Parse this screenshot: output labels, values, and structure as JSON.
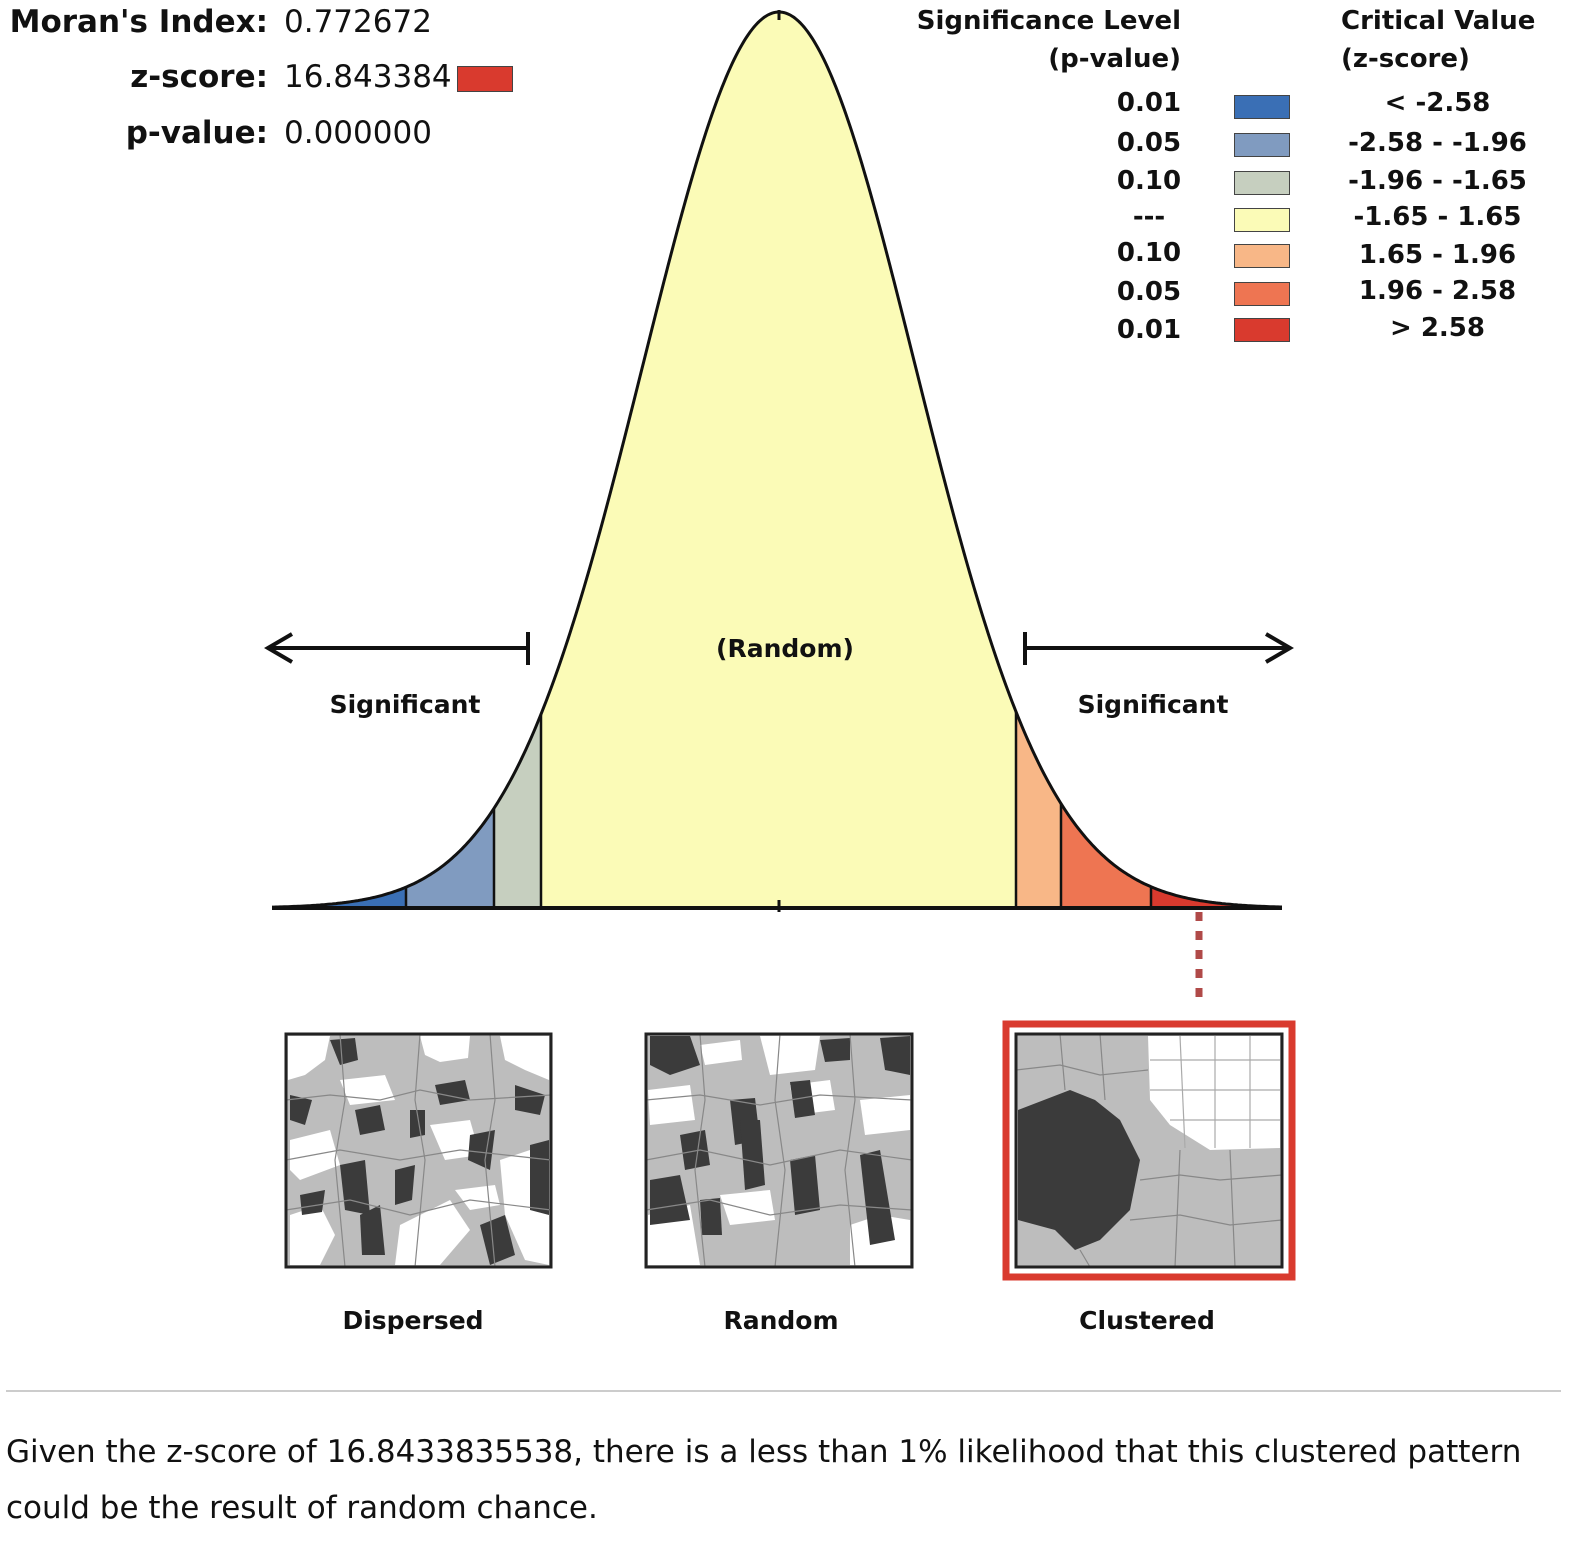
{
  "stats": {
    "morans_label": "Moran's Index:",
    "morans_value": "0.772672",
    "z_label": "z-score:",
    "z_value": "16.843384",
    "p_label": "p-value:",
    "p_value": "0.000000"
  },
  "legend": {
    "sig_header_line1": "Significance Level",
    "sig_header_line2": "(p-value)",
    "crit_header_line1": "Critical Value",
    "crit_header_line2": "(z-score)",
    "rows": [
      {
        "p": "0.01",
        "z": "< -2.58",
        "color": "#3a6fb5"
      },
      {
        "p": "0.05",
        "z": "-2.58 - -1.96",
        "color": "#809bc0"
      },
      {
        "p": "0.10",
        "z": "-1.96 - -1.65",
        "color": "#c6cfbf"
      },
      {
        "p": "---",
        "z": "-1.65 - 1.65",
        "color": "#fbfbb7"
      },
      {
        "p": "0.10",
        "z": "1.65 - 1.96",
        "color": "#f8b787"
      },
      {
        "p": "0.05",
        "z": "1.96 - 2.58",
        "color": "#ee7552"
      },
      {
        "p": "0.01",
        "z": "> 2.58",
        "color": "#d93a2e"
      }
    ]
  },
  "curve": {
    "center_label": "(Random)",
    "left_label": "Significant",
    "right_label": "Significant",
    "line_color": "#111111",
    "highlight_color": "#d93a2e",
    "dotted_color": "#b04a48"
  },
  "patterns": [
    {
      "label": "Dispersed",
      "selected": false
    },
    {
      "label": "Random",
      "selected": false
    },
    {
      "label": "Clustered",
      "selected": true
    }
  ],
  "summary": "Given the z-score of 16.8433835538, there is a less than 1% likelihood that this clustered pattern could be the result of random chance."
}
